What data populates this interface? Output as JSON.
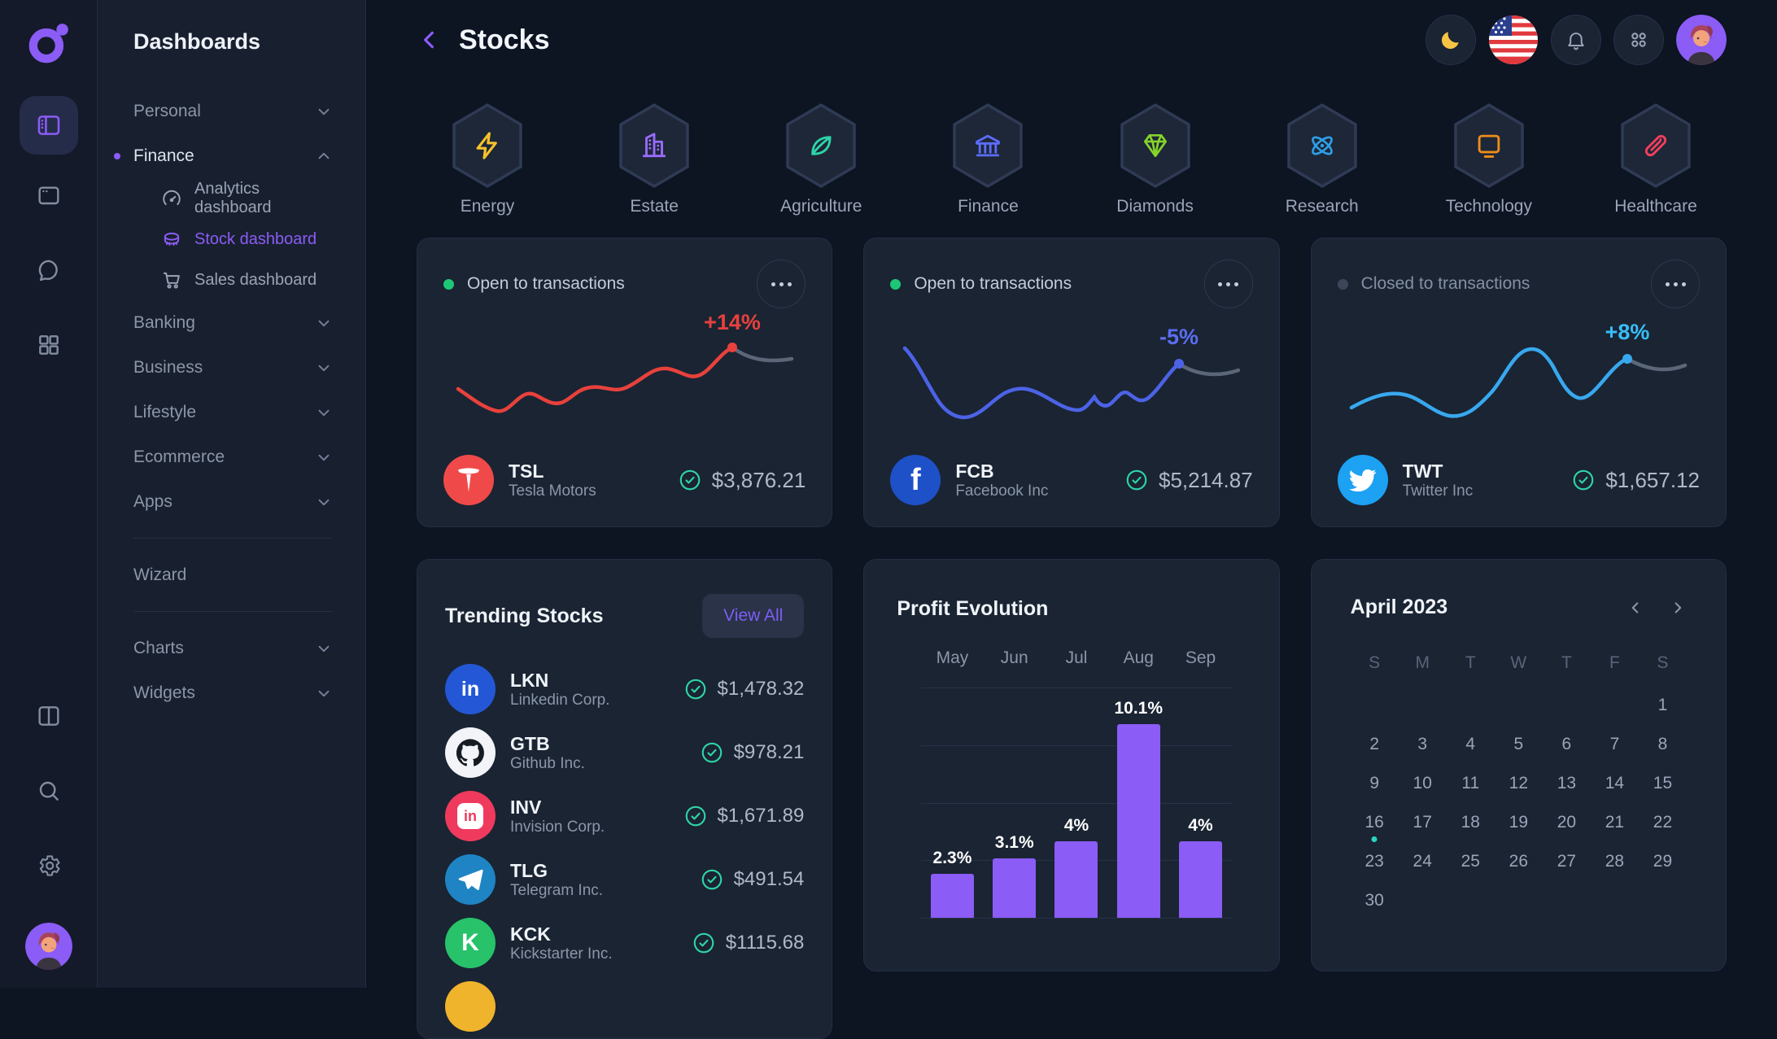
{
  "colors": {
    "accent_purple": "#8b5cf6",
    "background": "#0d1422",
    "card": "#1a2433",
    "open_dot": "#1ec776",
    "closed_dot": "#3b4759",
    "check": "#2fd5a5",
    "bar": "#8b5cf6",
    "calendar_event_dot": "#2dd4bf"
  },
  "sidebar": {
    "title": "Dashboards",
    "items": [
      {
        "label": "Personal",
        "chevron": "down"
      },
      {
        "label": "Finance",
        "chevron": "up",
        "active": true,
        "children": [
          {
            "label": "Analytics dashboard",
            "icon": "gauge-icon"
          },
          {
            "label": "Stock dashboard",
            "icon": "coin-icon",
            "active": true
          },
          {
            "label": "Sales dashboard",
            "icon": "cart-icon"
          }
        ]
      },
      {
        "label": "Banking",
        "chevron": "down"
      },
      {
        "label": "Business",
        "chevron": "down"
      },
      {
        "label": "Lifestyle",
        "chevron": "down"
      },
      {
        "label": "Ecommerce",
        "chevron": "down"
      },
      {
        "label": "Apps",
        "chevron": "down"
      },
      {
        "label": "Wizard",
        "divider_before": true,
        "divider_after": true
      },
      {
        "label": "Charts",
        "chevron": "down"
      },
      {
        "label": "Widgets",
        "chevron": "down"
      }
    ]
  },
  "header": {
    "title": "Stocks"
  },
  "categories": [
    {
      "label": "Energy",
      "icon": "lightning-icon",
      "color": "#f5c22b"
    },
    {
      "label": "Estate",
      "icon": "building-icon",
      "color": "#9a6bff"
    },
    {
      "label": "Agriculture",
      "icon": "leaf-icon",
      "color": "#2dd4a8"
    },
    {
      "label": "Finance",
      "icon": "bank-icon",
      "color": "#5c6cfa"
    },
    {
      "label": "Diamonds",
      "icon": "diamond-icon",
      "color": "#86d32a"
    },
    {
      "label": "Research",
      "icon": "atom-icon",
      "color": "#2e9fe6"
    },
    {
      "label": "Technology",
      "icon": "monitor-icon",
      "color": "#f08c1a"
    },
    {
      "label": "Healthcare",
      "icon": "capsule-icon",
      "color": "#f43f5e"
    }
  ],
  "stock_cards": [
    {
      "status": "Open to transactions",
      "open": true,
      "change": "+14%",
      "change_color": "#e8413c",
      "line_color": "#e8413c",
      "spark": "tsl",
      "ticker": "TSL",
      "company": "Tesla Motors",
      "price": "$3,876.21",
      "icon": "tesla-icon",
      "brand_color": "#ef4a49"
    },
    {
      "status": "Open to transactions",
      "open": true,
      "change": "-5%",
      "change_color": "#5b6df0",
      "line_color": "#4c63e6",
      "spark": "fcb",
      "ticker": "FCB",
      "company": "Facebook Inc",
      "price": "$5,214.87",
      "icon": "facebook-icon",
      "brand_color": "#1e50c8"
    },
    {
      "status": "Closed to transactions",
      "open": false,
      "change": "+8%",
      "change_color": "#38bdf8",
      "line_color": "#38a8ee",
      "spark": "twt",
      "ticker": "TWT",
      "company": "Twitter Inc",
      "price": "$1,657.12",
      "icon": "twitter-icon",
      "brand_color": "#1da1f2"
    }
  ],
  "trending": {
    "title": "Trending Stocks",
    "view_all": "View All",
    "items": [
      {
        "ticker": "LKN",
        "company": "Linkedin Corp.",
        "price": "$1,478.32",
        "icon": "linkedin-icon",
        "brand_color": "#2457d6"
      },
      {
        "ticker": "GTB",
        "company": "Github Inc.",
        "price": "$978.21",
        "icon": "github-icon",
        "brand_color": "#f2f4f7"
      },
      {
        "ticker": "INV",
        "company": "Invision Corp.",
        "price": "$1,671.89",
        "icon": "invision-icon",
        "brand_color": "#ef3a5e"
      },
      {
        "ticker": "TLG",
        "company": "Telegram Inc.",
        "price": "$491.54",
        "icon": "telegram-icon",
        "brand_color": "#1f84c4"
      },
      {
        "ticker": "KCK",
        "company": "Kickstarter Inc.",
        "price": "$1115.68",
        "icon": "kickstarter-icon",
        "brand_color": "#27c269"
      },
      {
        "ticker": "",
        "company": "",
        "price": "",
        "icon": "coin-dot-icon",
        "brand_color": "#f0b32c",
        "partial": true
      }
    ]
  },
  "chart_data": {
    "type": "bar",
    "title": "Profit Evolution",
    "categories": [
      "May",
      "Jun",
      "Jul",
      "Aug",
      "Sep"
    ],
    "values": [
      2.3,
      3.1,
      4,
      10.1,
      4
    ],
    "labels": [
      "2.3%",
      "3.1%",
      "4%",
      "10.1%",
      "4%"
    ],
    "xlabel": "",
    "ylabel": "",
    "ylim": [
      0,
      12
    ],
    "grid": true,
    "axis_position": "top",
    "bar_color": "#8b5cf6"
  },
  "calendar": {
    "title": "April 2023",
    "weekdays": [
      "S",
      "M",
      "T",
      "W",
      "T",
      "F",
      "S"
    ],
    "weeks": [
      [
        "",
        "",
        "",
        "",
        "",
        "",
        "1"
      ],
      [
        "2",
        "3",
        "4",
        "5",
        "6",
        "7",
        "8"
      ],
      [
        "9",
        "10",
        "11",
        "12",
        "13",
        "14",
        "15"
      ],
      [
        "16",
        "17",
        "18",
        "19",
        "20",
        "21",
        "22"
      ],
      [
        "23",
        "24",
        "25",
        "26",
        "27",
        "28",
        "29"
      ],
      [
        "30",
        "",
        "",
        "",
        "",
        "",
        ""
      ]
    ],
    "event_day": "16"
  }
}
